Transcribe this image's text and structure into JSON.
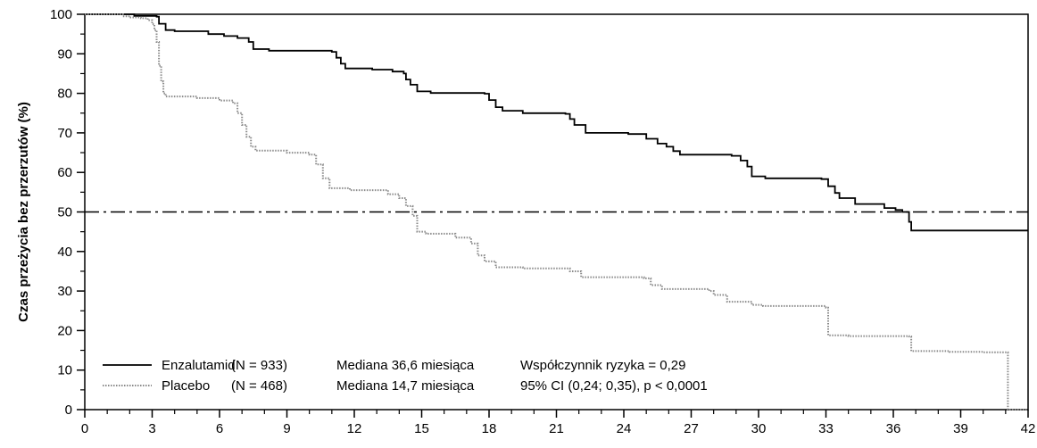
{
  "chart_data": {
    "type": "line",
    "step": true,
    "title": "",
    "xlabel": "",
    "ylabel": "Czas przeżycia bez przerzutów (%)",
    "xlim": [
      0,
      42
    ],
    "ylim": [
      0,
      100
    ],
    "x_ticks": [
      0,
      3,
      6,
      9,
      12,
      15,
      18,
      21,
      24,
      27,
      30,
      33,
      36,
      39,
      42
    ],
    "x_minor_ticks": [
      1,
      2,
      4,
      5,
      7,
      8,
      10,
      11,
      13,
      14,
      16,
      17,
      19,
      20,
      22,
      23,
      25,
      26,
      28,
      29,
      31,
      32,
      34,
      35,
      37,
      38,
      40,
      41
    ],
    "y_ticks": [
      0,
      10,
      20,
      30,
      40,
      50,
      60,
      70,
      80,
      90,
      100
    ],
    "reference_line": {
      "y": 50,
      "style": "dash-dot"
    },
    "grid": false,
    "legend_placement": "bottom-left",
    "series": [
      {
        "name": "Enzalutamid",
        "legend": {
          "label": "Enzalutamid",
          "n": "(N = 933)",
          "median": "Mediana 36,6 miesiąca",
          "stat": "Współczynnik ryzyka = 0,29"
        },
        "color": "#000000",
        "style": "solid",
        "points": [
          [
            0,
            100
          ],
          [
            2.0,
            100
          ],
          [
            2.2,
            99.6
          ],
          [
            3.2,
            99.4
          ],
          [
            3.3,
            97.6
          ],
          [
            3.6,
            96.0
          ],
          [
            4.0,
            95.7
          ],
          [
            5.5,
            95.0
          ],
          [
            6.2,
            94.5
          ],
          [
            6.8,
            94.0
          ],
          [
            7.3,
            93.0
          ],
          [
            7.5,
            91.2
          ],
          [
            8.2,
            90.8
          ],
          [
            11.0,
            90.5
          ],
          [
            11.2,
            89.0
          ],
          [
            11.4,
            87.5
          ],
          [
            11.6,
            86.3
          ],
          [
            12.8,
            86.0
          ],
          [
            13.7,
            85.5
          ],
          [
            14.2,
            85.0
          ],
          [
            14.3,
            83.5
          ],
          [
            14.5,
            82.2
          ],
          [
            14.8,
            80.5
          ],
          [
            15.4,
            80.1
          ],
          [
            17.8,
            79.9
          ],
          [
            18.0,
            78.3
          ],
          [
            18.3,
            76.5
          ],
          [
            18.6,
            75.6
          ],
          [
            19.5,
            75.0
          ],
          [
            21.4,
            74.8
          ],
          [
            21.6,
            73.5
          ],
          [
            21.8,
            72.0
          ],
          [
            22.3,
            70.0
          ],
          [
            24.2,
            69.7
          ],
          [
            25.0,
            68.5
          ],
          [
            25.5,
            67.3
          ],
          [
            25.9,
            66.5
          ],
          [
            26.2,
            65.4
          ],
          [
            26.5,
            64.5
          ],
          [
            28.8,
            64.2
          ],
          [
            29.2,
            63.0
          ],
          [
            29.5,
            61.5
          ],
          [
            29.7,
            59.0
          ],
          [
            30.3,
            58.5
          ],
          [
            32.8,
            58.3
          ],
          [
            33.1,
            56.5
          ],
          [
            33.4,
            54.8
          ],
          [
            33.6,
            53.5
          ],
          [
            34.3,
            52.0
          ],
          [
            35.6,
            51.0
          ],
          [
            36.1,
            50.5
          ],
          [
            36.4,
            50.0
          ],
          [
            36.7,
            47.5
          ],
          [
            36.8,
            45.3
          ],
          [
            42,
            45.3
          ]
        ]
      },
      {
        "name": "Placebo",
        "legend": {
          "label": "Placebo",
          "n": "(N = 468)",
          "median": "Mediana 14,7 miesiąca",
          "stat": "95% CI (0,24; 0,35), p < 0,0001"
        },
        "color": "#8a8a8a",
        "style": "dotted",
        "points": [
          [
            0,
            100
          ],
          [
            1.5,
            100
          ],
          [
            1.7,
            99.5
          ],
          [
            2.0,
            99.2
          ],
          [
            2.5,
            99.0
          ],
          [
            2.8,
            98.5
          ],
          [
            3.0,
            97.5
          ],
          [
            3.1,
            96.0
          ],
          [
            3.2,
            93.0
          ],
          [
            3.3,
            87.0
          ],
          [
            3.4,
            83.0
          ],
          [
            3.5,
            80.0
          ],
          [
            3.6,
            79.2
          ],
          [
            5.0,
            78.8
          ],
          [
            6.0,
            78.2
          ],
          [
            6.6,
            77.5
          ],
          [
            6.8,
            75.0
          ],
          [
            7.0,
            72.0
          ],
          [
            7.2,
            69.0
          ],
          [
            7.4,
            66.5
          ],
          [
            7.6,
            65.5
          ],
          [
            9.0,
            65.0
          ],
          [
            10.0,
            64.5
          ],
          [
            10.3,
            62.0
          ],
          [
            10.6,
            58.5
          ],
          [
            10.9,
            56.0
          ],
          [
            11.8,
            55.5
          ],
          [
            13.5,
            54.5
          ],
          [
            14.0,
            53.5
          ],
          [
            14.3,
            51.5
          ],
          [
            14.6,
            49.0
          ],
          [
            14.8,
            45.0
          ],
          [
            15.2,
            44.5
          ],
          [
            16.5,
            43.5
          ],
          [
            17.2,
            42.0
          ],
          [
            17.5,
            39.0
          ],
          [
            17.8,
            37.5
          ],
          [
            18.3,
            36.0
          ],
          [
            19.5,
            35.7
          ],
          [
            21.6,
            35.0
          ],
          [
            22.1,
            33.5
          ],
          [
            24.9,
            33.2
          ],
          [
            25.2,
            31.5
          ],
          [
            25.7,
            30.5
          ],
          [
            27.8,
            30.0
          ],
          [
            28.0,
            29.0
          ],
          [
            28.6,
            27.3
          ],
          [
            29.7,
            26.5
          ],
          [
            30.2,
            26.2
          ],
          [
            33.0,
            25.8
          ],
          [
            33.1,
            18.8
          ],
          [
            34.0,
            18.6
          ],
          [
            36.7,
            18.5
          ],
          [
            36.8,
            14.8
          ],
          [
            38.5,
            14.6
          ],
          [
            40.0,
            14.5
          ],
          [
            41.0,
            14.5
          ],
          [
            41.1,
            0
          ],
          [
            42,
            0
          ]
        ]
      }
    ]
  }
}
